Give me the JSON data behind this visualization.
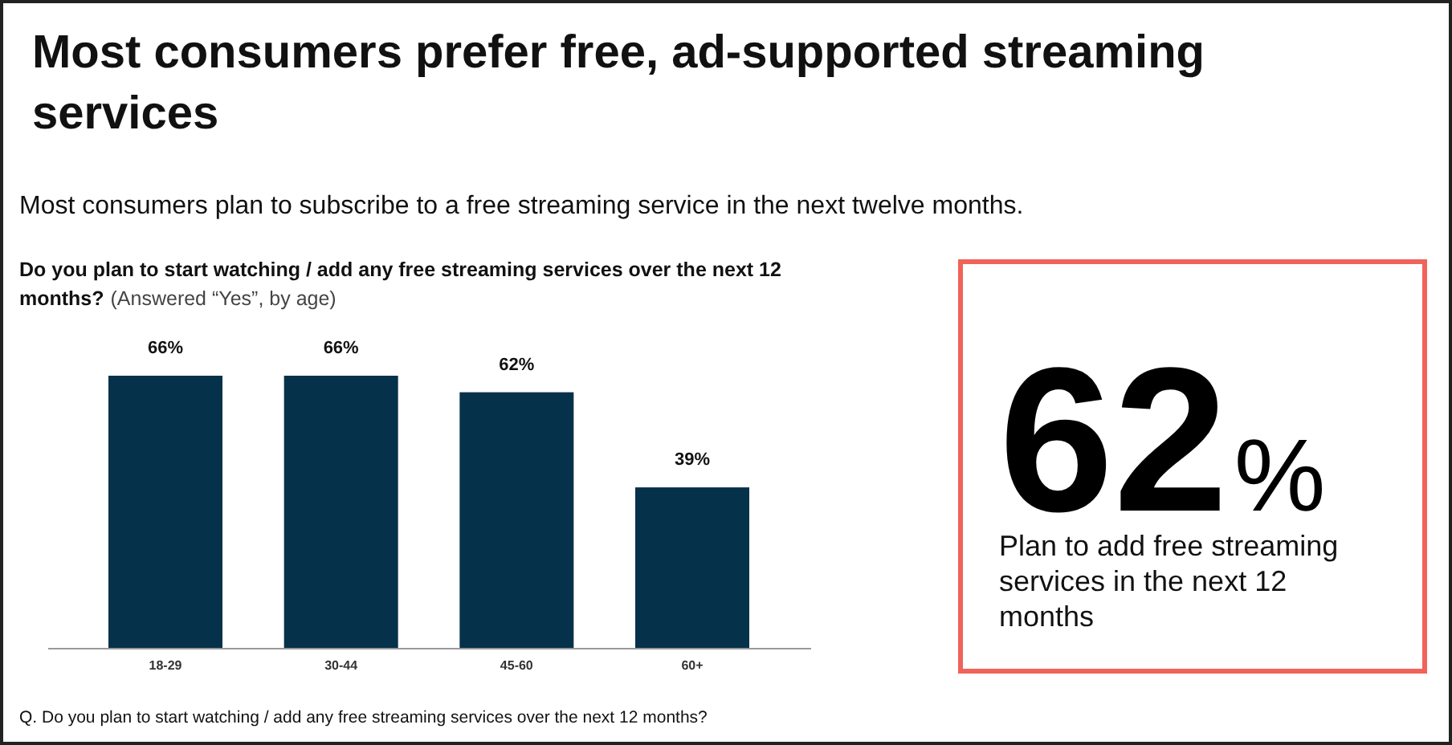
{
  "chart_data": [
    {
      "type": "bar",
      "title": "Most consumers prefer free, ad-supported streaming services",
      "subtitle": "Most consumers plan to subscribe to a free streaming service in the next twelve months.",
      "annotations": [
        "Do you plan to start watching / add any free streaming services over the next 12 months?",
        "(Answered “Yes”, by age)",
        "Q. Do you plan to start watching / add any free streaming services over the next 12 months?"
      ],
      "categories": [
        "18-29",
        "30-44",
        "45-60",
        "60+"
      ],
      "values": [
        66,
        66,
        62,
        39
      ],
      "value_labels": [
        "66%",
        "66%",
        "62%",
        "39%"
      ],
      "color": "#06314a"
    },
    {
      "type": "other",
      "title": "62%",
      "subtitle": "Plan to add free streaming services in the next 12 months",
      "color": "#f0635a"
    }
  ]
}
